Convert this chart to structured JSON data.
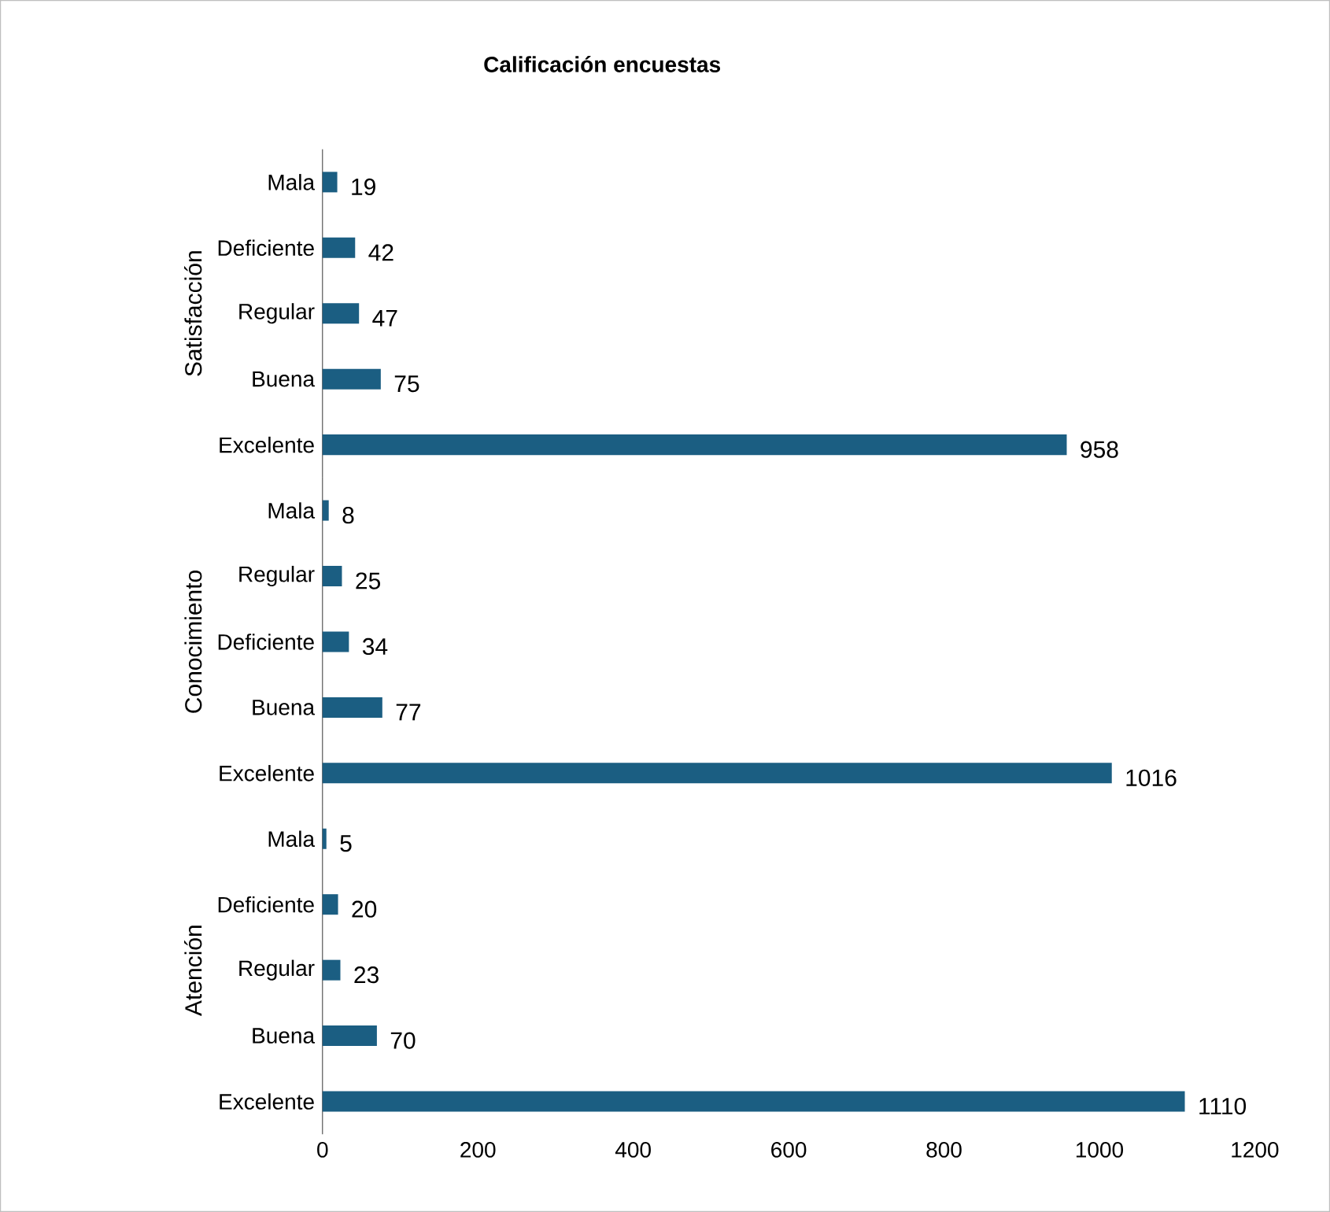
{
  "chart_data": [
    {
      "type": "bar",
      "orientation": "horizontal",
      "title": "Calificación encuestas",
      "ylabel": "Satisfacción",
      "categories": [
        "Mala",
        "Deficiente",
        "Regular",
        "Buena",
        "Excelente"
      ],
      "values": [
        19,
        42,
        47,
        75,
        958
      ],
      "color": "#1b5e82",
      "data_labels": true,
      "xlim": [
        0,
        1200
      ],
      "xticks": [
        0,
        200,
        400,
        600,
        800,
        1000,
        1200
      ],
      "tick_labels": "y",
      "grid": false
    },
    {
      "type": "bar",
      "orientation": "horizontal",
      "ylabel": "Conocimiento",
      "categories": [
        "Mala",
        "Regular",
        "Deficiente",
        "Buena",
        "Excelente"
      ],
      "values": [
        8,
        25,
        34,
        77,
        1016
      ],
      "color": "#1b5e82",
      "data_labels": true,
      "xlim": [
        0,
        1200
      ],
      "xticks": [
        0,
        200,
        400,
        600,
        800,
        1000,
        1200
      ],
      "tick_labels": "y",
      "grid": false
    },
    {
      "type": "bar",
      "orientation": "horizontal",
      "ylabel": "Atención",
      "categories": [
        "Mala",
        "Deficiente",
        "Regular",
        "Buena",
        "Excelente"
      ],
      "values": [
        5,
        20,
        23,
        70,
        1110
      ],
      "color": "#1b5e82",
      "data_labels": true,
      "xlim": [
        0,
        1200
      ],
      "xticks": [
        0,
        200,
        400,
        600,
        800,
        1000,
        1200
      ],
      "grid": false
    }
  ]
}
